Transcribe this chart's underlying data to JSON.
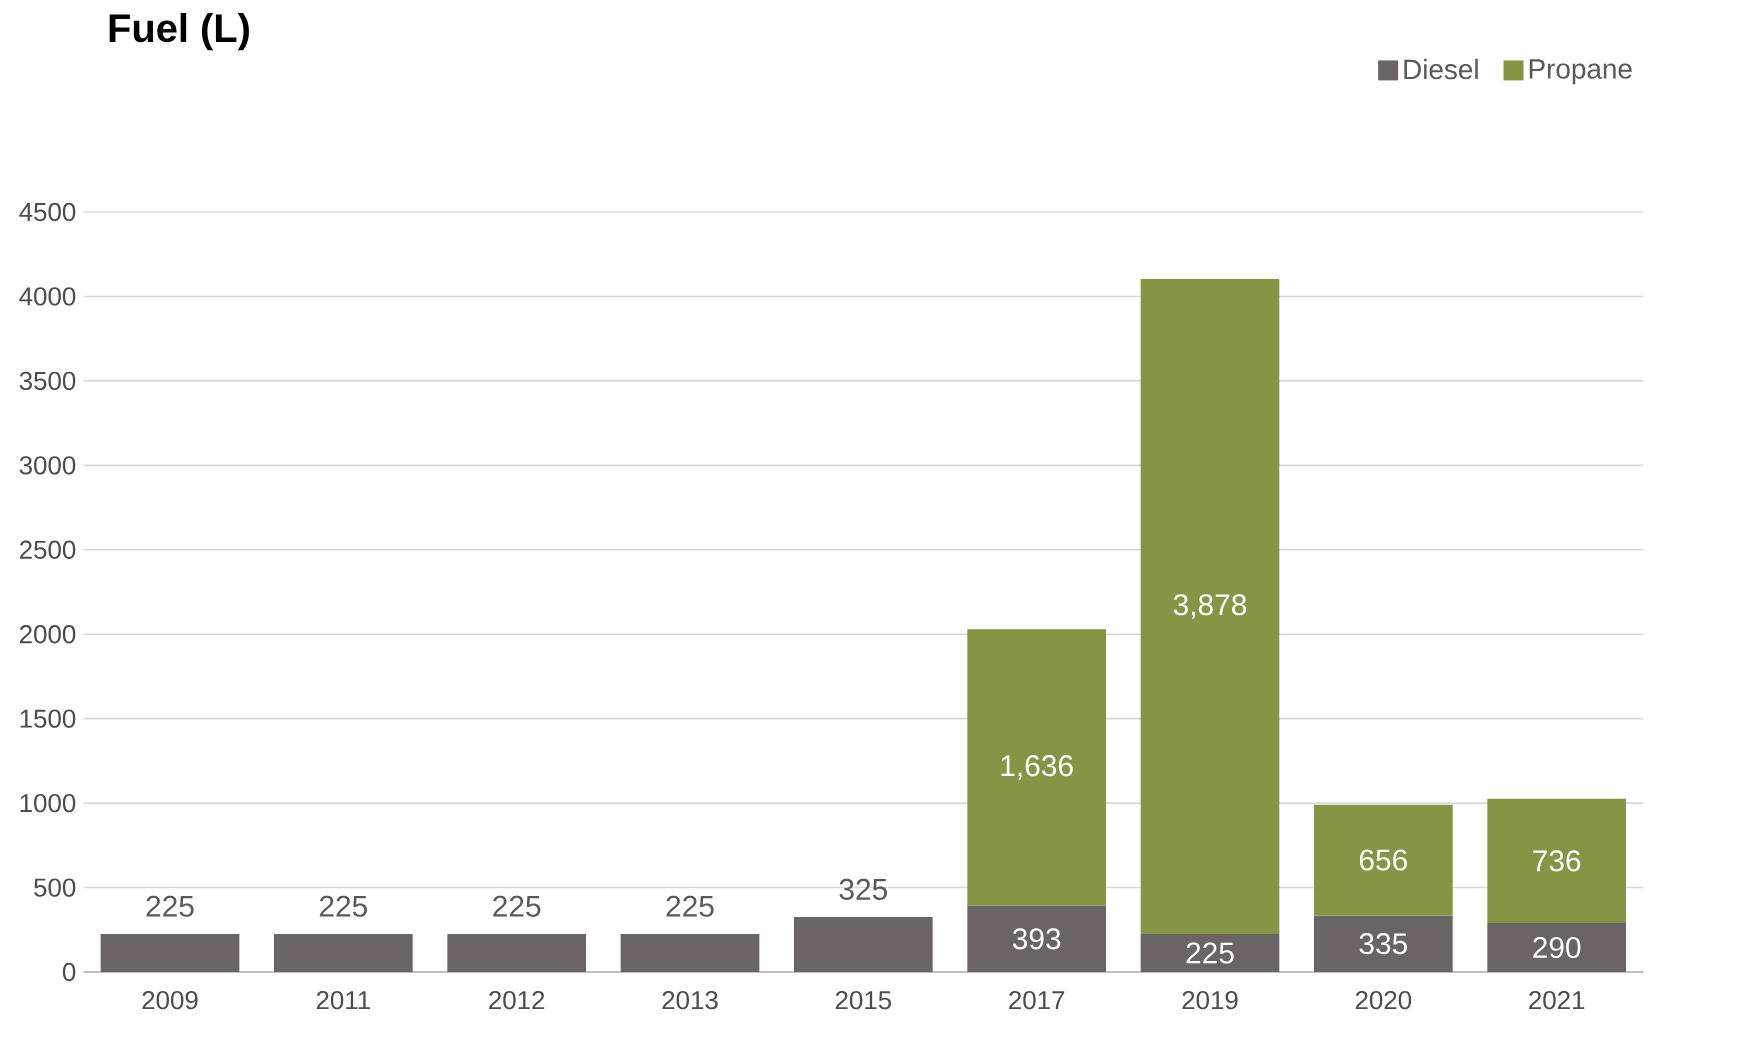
{
  "chart_data": {
    "type": "bar",
    "stacked": true,
    "title": "Fuel **(L)**",
    "categories": [
      "2009",
      "2011",
      "2012",
      "2013",
      "2015",
      "2017",
      "2019",
      "2020",
      "2021"
    ],
    "series": [
      {
        "name": "Diesel",
        "color": "#6b6466",
        "values": [
          225,
          225,
          225,
          225,
          325,
          393,
          225,
          335,
          290
        ],
        "value_labels": [
          "225",
          "225",
          "225",
          "225",
          "325",
          "393",
          "225",
          "335",
          "290"
        ]
      },
      {
        "name": "Propane",
        "color": "#859546",
        "values": [
          null,
          null,
          null,
          null,
          null,
          1636,
          3878,
          656,
          736
        ],
        "value_labels": [
          null,
          null,
          null,
          null,
          null,
          "1,636",
          "3,878",
          "656",
          "736"
        ]
      }
    ],
    "ylim": [
      0,
      4500
    ],
    "yticks": [
      0,
      500,
      1000,
      1500,
      2000,
      2500,
      3000,
      3500,
      4000,
      4500
    ],
    "grid": "y",
    "legend": "top right"
  }
}
